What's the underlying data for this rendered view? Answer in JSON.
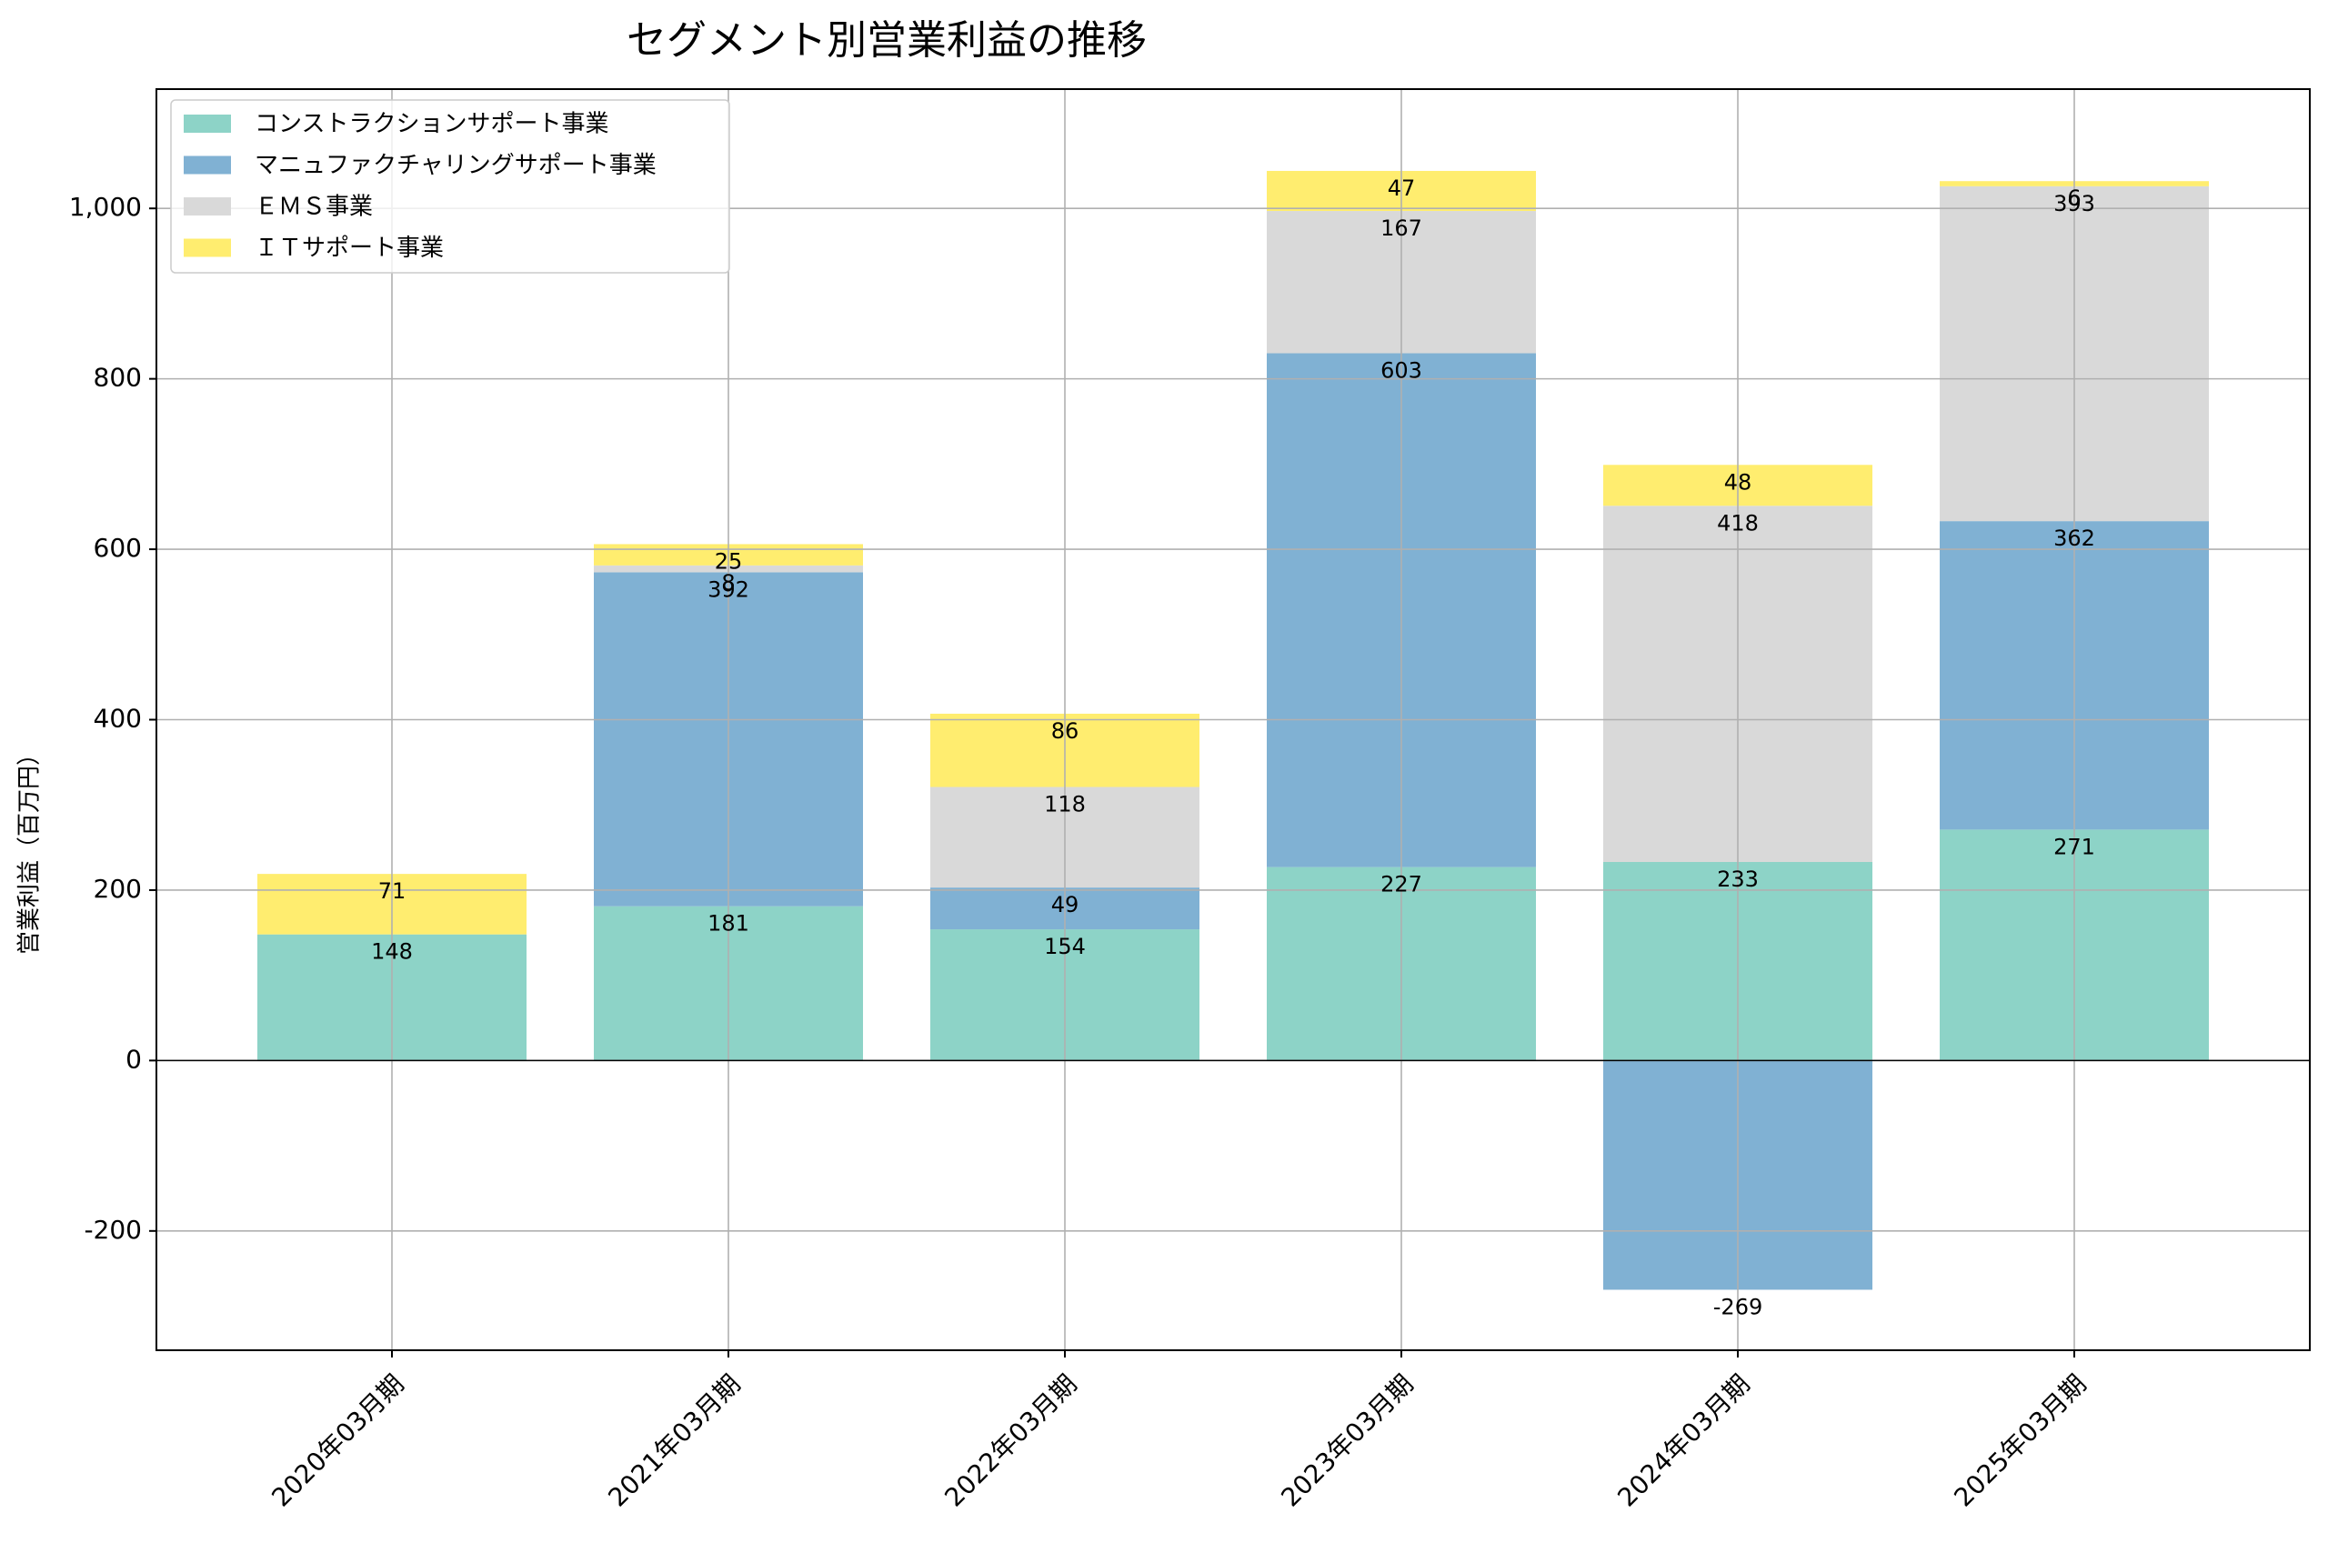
{
  "chart_data": {
    "type": "bar",
    "stacked": true,
    "title": "セグメント別営業利益の推移",
    "ylabel": "営業利益（百万円）",
    "xlabel": "",
    "categories": [
      "2020年03月期",
      "2021年03月期",
      "2022年03月期",
      "2023年03月期",
      "2024年03月期",
      "2025年03月期"
    ],
    "series": [
      {
        "name": "コンストラクションサポート事業",
        "color": "#8dd3c7",
        "values": [
          148,
          181,
          154,
          227,
          233,
          271
        ]
      },
      {
        "name": "マニュファクチャリングサポート事業",
        "color": "#80b1d3",
        "values": [
          null,
          392,
          49,
          603,
          -269,
          362
        ]
      },
      {
        "name": "ＥＭＳ事業",
        "color": "#d9d9d9",
        "values": [
          null,
          8,
          118,
          167,
          418,
          393
        ]
      },
      {
        "name": "ＩＴサポート事業",
        "color": "#ffed6f",
        "values": [
          71,
          25,
          86,
          47,
          48,
          6
        ]
      }
    ],
    "data_labels": [
      [
        "148",
        "",
        "",
        "71"
      ],
      [
        "181",
        "392",
        "8",
        "25"
      ],
      [
        "154",
        "49",
        "118",
        "86"
      ],
      [
        "227",
        "603",
        "167",
        "47"
      ],
      [
        "233",
        "-269",
        "418",
        "48"
      ],
      [
        "271",
        "362",
        "393",
        "6"
      ]
    ],
    "ylim": [
      -340,
      1140
    ],
    "yticks": [
      -200,
      0,
      200,
      400,
      600,
      800,
      1000
    ],
    "ytick_labels": [
      "-200",
      "0",
      "200",
      "400",
      "600",
      "800",
      "1,000"
    ],
    "grid": true,
    "legend_position": "top-left"
  }
}
